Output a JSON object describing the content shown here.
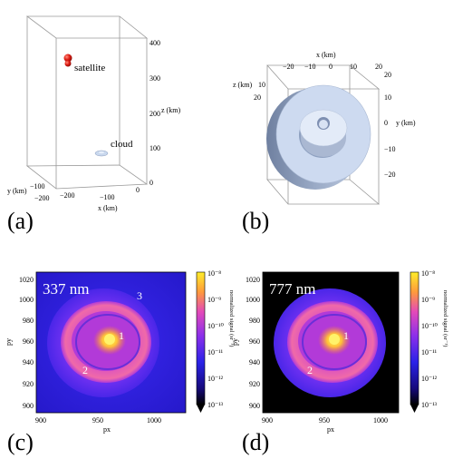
{
  "panels": {
    "a": {
      "label": "(a)",
      "satellite": "satellite",
      "cloud": "cloud",
      "z_axis": "z (km)",
      "y_axis": "y (km)",
      "x_axis": "x (km)",
      "z_ticks": [
        "400",
        "300",
        "200",
        "100",
        "0"
      ],
      "y_ticks": [
        "−100",
        "−200"
      ],
      "x_ticks": [
        "−200",
        "−100",
        "0"
      ]
    },
    "b": {
      "label": "(b)",
      "x_axis": "x (km)",
      "z_axis": "z (km)",
      "y_axis": "y (km)",
      "x_ticks": [
        "−20",
        "−10",
        "0",
        "10",
        "20"
      ],
      "z_ticks": [
        "10",
        "20"
      ],
      "y_ticks": [
        "20",
        "10",
        "0",
        "−10",
        "−20"
      ]
    },
    "c": {
      "label": "(c)",
      "wavelength": "337 nm",
      "region_labels": [
        "1",
        "2",
        "3"
      ],
      "xlabel": "px",
      "ylabel": "py",
      "xticks": [
        "900",
        "950",
        "1000"
      ],
      "yticks": [
        "1020",
        "1000",
        "980",
        "960",
        "940",
        "920",
        "900"
      ],
      "colorbar_label": "normalized signal (sr⁻¹)",
      "colorbar_ticks": [
        "10⁻⁸",
        "10⁻⁹",
        "10⁻¹⁰",
        "10⁻¹¹",
        "10⁻¹²",
        "10⁻¹³"
      ]
    },
    "d": {
      "label": "(d)",
      "wavelength": "777 nm",
      "region_labels": [
        "1",
        "2"
      ],
      "xlabel": "px",
      "ylabel": "py",
      "xticks": [
        "900",
        "950",
        "1000"
      ],
      "yticks": [
        "1020",
        "1000",
        "980",
        "960",
        "940",
        "920",
        "900"
      ],
      "colorbar_label": "normalized signal (sr⁻¹)",
      "colorbar_ticks": [
        "10⁻⁸",
        "10⁻⁹",
        "10⁻¹⁰",
        "10⁻¹¹",
        "10⁻¹²",
        "10⁻¹³"
      ]
    }
  },
  "colors": {
    "satellite": "#d41a12",
    "cloud": "#c9d8ee",
    "box_edge": "#9a9a9a",
    "cmap_low": "#000000",
    "cmap_mid": "#3b1fd6",
    "cmap_high": "#ffee2a"
  }
}
